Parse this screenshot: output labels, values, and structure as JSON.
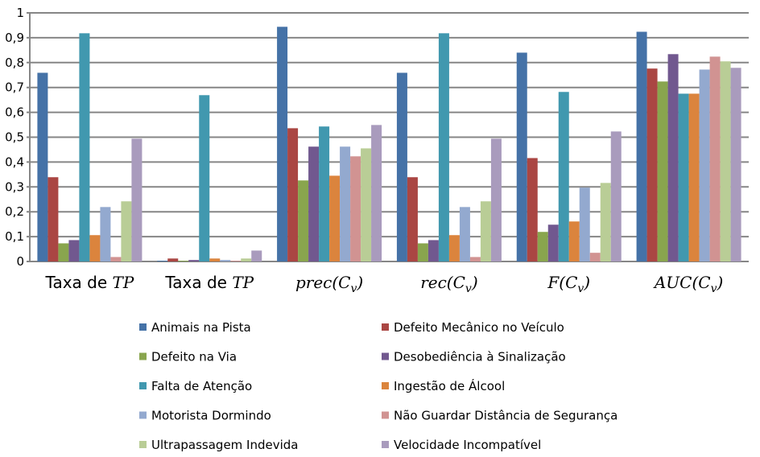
{
  "chart_data": {
    "type": "bar",
    "title": "",
    "xlabel": "",
    "ylabel": "",
    "ylim": [
      0,
      1
    ],
    "yticks": [
      "0",
      "0,1",
      "0,2",
      "0,3",
      "0,4",
      "0,5",
      "0,6",
      "0,7",
      "0,8",
      "0,9",
      "1"
    ],
    "grid": true,
    "legend_position": "bottom",
    "categories": [
      {
        "text": "Taxa de ",
        "math": "TP",
        "sub": ""
      },
      {
        "text": "Taxa de ",
        "math": "TP",
        "sub": ""
      },
      {
        "text": "",
        "math": "prec(C",
        "sub": "v",
        "close": ")"
      },
      {
        "text": "",
        "math": "rec(C",
        "sub": "v",
        "close": ")"
      },
      {
        "text": "",
        "math": "F(C",
        "sub": "v",
        "close": ")"
      },
      {
        "text": "",
        "math": "AUC(C",
        "sub": "v",
        "close": ")"
      }
    ],
    "series": [
      {
        "name": "Animais na Pista",
        "color": "#4572a7",
        "values": [
          0.759,
          0.003,
          0.944,
          0.759,
          0.84,
          0.924
        ]
      },
      {
        "name": "Defeito Mecânico no Veículo",
        "color": "#aa4643",
        "values": [
          0.339,
          0.012,
          0.536,
          0.339,
          0.416,
          0.776
        ]
      },
      {
        "name": "Defeito na Via",
        "color": "#89a54e",
        "values": [
          0.073,
          0.003,
          0.326,
          0.073,
          0.119,
          0.724
        ]
      },
      {
        "name": "Desobediência à Sinalização",
        "color": "#71588f",
        "values": [
          0.086,
          0.006,
          0.462,
          0.086,
          0.148,
          0.834
        ]
      },
      {
        "name": "Falta de Atenção",
        "color": "#4198af",
        "values": [
          0.918,
          0.669,
          0.543,
          0.918,
          0.682,
          0.675
        ]
      },
      {
        "name": "Ingestão de Álcool",
        "color": "#db843d",
        "values": [
          0.106,
          0.012,
          0.345,
          0.106,
          0.161,
          0.675
        ]
      },
      {
        "name": "Motorista Dormindo",
        "color": "#93a9cf",
        "values": [
          0.219,
          0.006,
          0.462,
          0.219,
          0.297,
          0.772
        ]
      },
      {
        "name": "Não Guardar Distância de Segurança",
        "color": "#d19392",
        "values": [
          0.018,
          0.003,
          0.423,
          0.018,
          0.035,
          0.824
        ]
      },
      {
        "name": "Ultrapassagem Indevida",
        "color": "#b9cd96",
        "values": [
          0.242,
          0.012,
          0.455,
          0.242,
          0.316,
          0.805
        ]
      },
      {
        "name": "Velocidade Incompatível",
        "color": "#a99bbd",
        "values": [
          0.494,
          0.044,
          0.549,
          0.494,
          0.523,
          0.779
        ]
      }
    ]
  }
}
